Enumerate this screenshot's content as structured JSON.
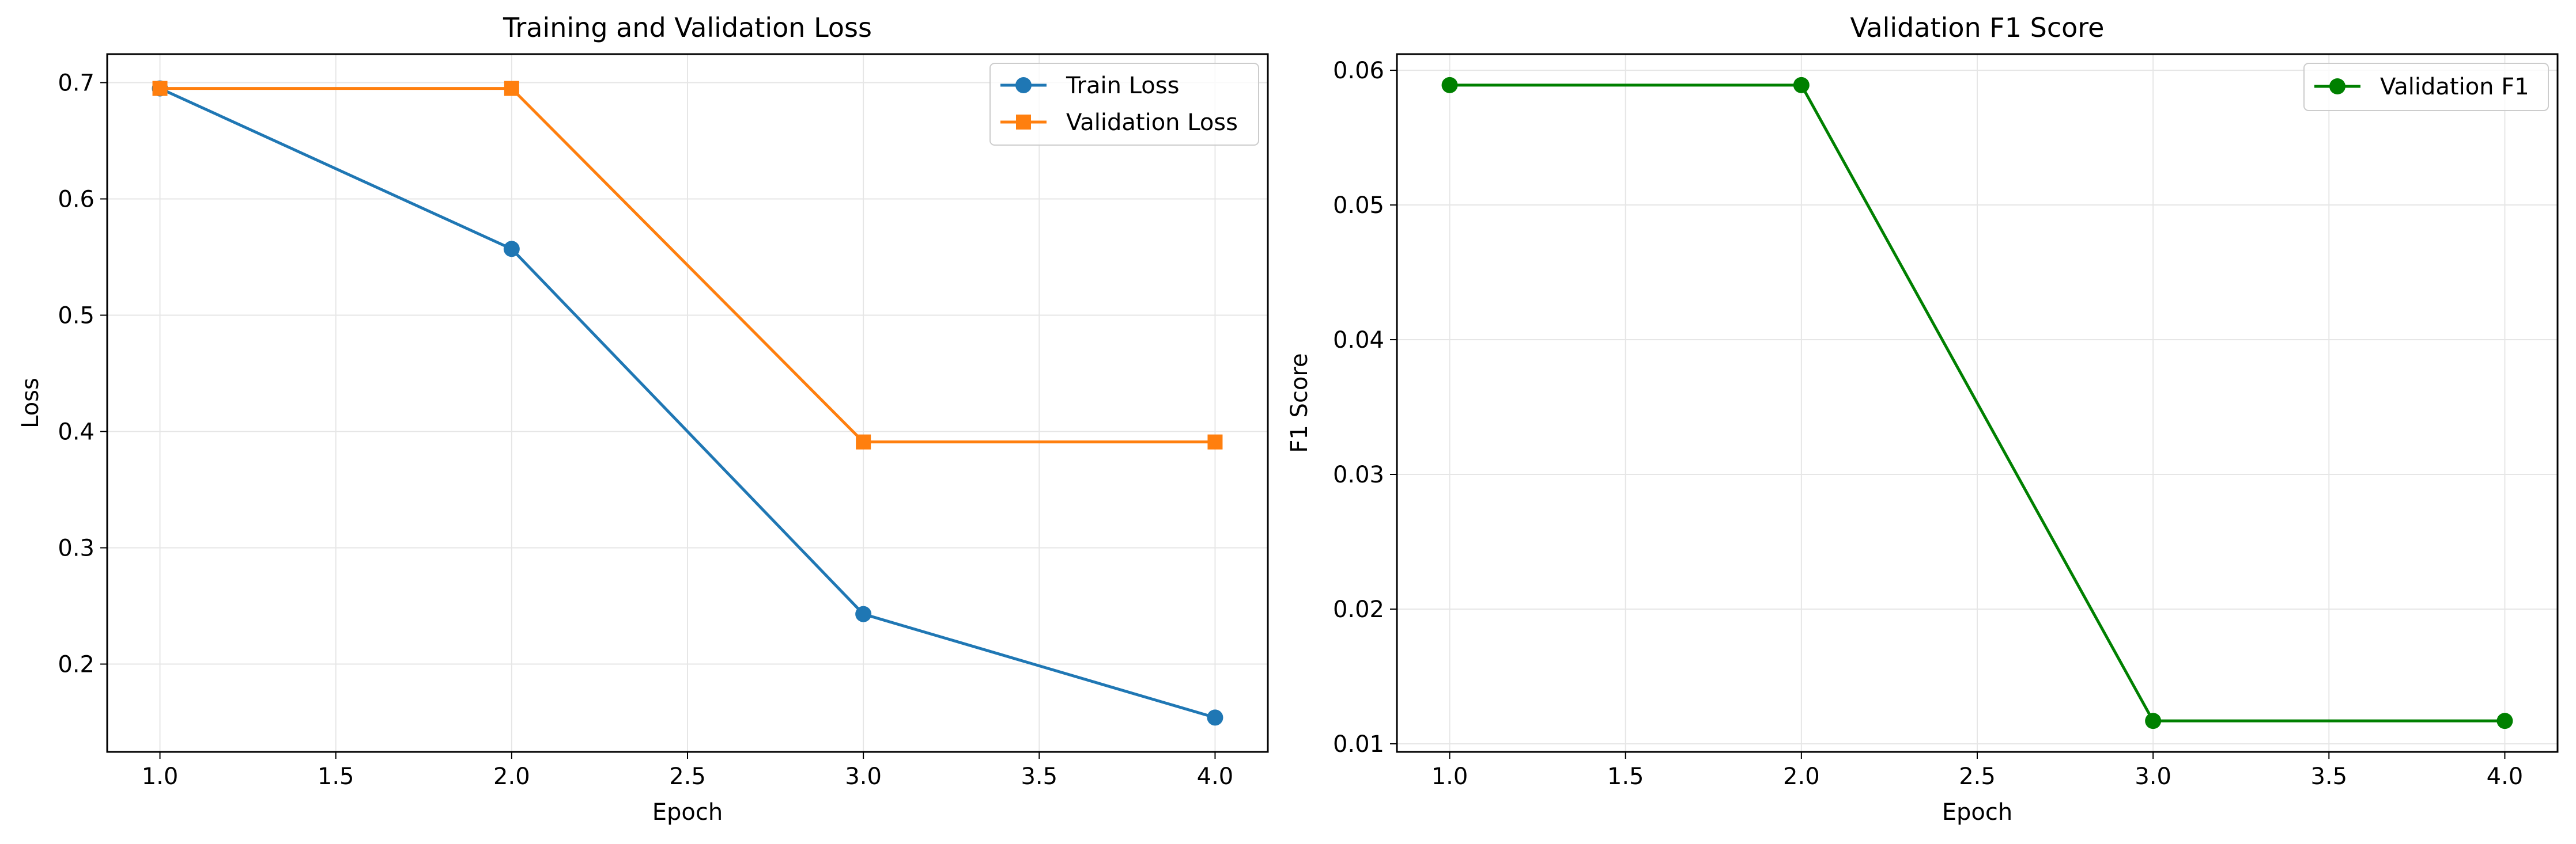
{
  "colors": {
    "train": "#1f77b4",
    "validation": "#ff7f0e",
    "f1": "#008000",
    "grid": "#e6e6e6",
    "axis": "#000000"
  },
  "chart_data": [
    {
      "type": "line",
      "title": "Training and Validation Loss",
      "xlabel": "Epoch",
      "ylabel": "Loss",
      "x": [
        1.0,
        2.0,
        3.0,
        4.0
      ],
      "xlim": [
        0.85,
        4.15
      ],
      "ylim": [
        0.1245,
        0.7245
      ],
      "xticks": [
        1.0,
        1.5,
        2.0,
        2.5,
        3.0,
        3.5,
        4.0
      ],
      "xtick_labels": [
        "1.0",
        "1.5",
        "2.0",
        "2.5",
        "3.0",
        "3.5",
        "4.0"
      ],
      "yticks": [
        0.2,
        0.3,
        0.4,
        0.5,
        0.6,
        0.7
      ],
      "ytick_labels": [
        "0.2",
        "0.3",
        "0.4",
        "0.5",
        "0.6",
        "0.7"
      ],
      "grid": true,
      "legend_position": "top-right",
      "series": [
        {
          "name": "Train Loss",
          "color": "#1f77b4",
          "marker": "circle",
          "values": [
            0.695,
            0.557,
            0.243,
            0.154
          ]
        },
        {
          "name": "Validation Loss",
          "color": "#ff7f0e",
          "marker": "square",
          "values": [
            0.695,
            0.695,
            0.391,
            0.391
          ]
        }
      ]
    },
    {
      "type": "line",
      "title": "Validation F1 Score",
      "xlabel": "Epoch",
      "ylabel": "F1 Score",
      "x": [
        1.0,
        2.0,
        3.0,
        4.0
      ],
      "xlim": [
        0.85,
        4.15
      ],
      "ylim": [
        0.0094,
        0.0612
      ],
      "xticks": [
        1.0,
        1.5,
        2.0,
        2.5,
        3.0,
        3.5,
        4.0
      ],
      "xtick_labels": [
        "1.0",
        "1.5",
        "2.0",
        "2.5",
        "3.0",
        "3.5",
        "4.0"
      ],
      "yticks": [
        0.01,
        0.02,
        0.03,
        0.04,
        0.05,
        0.06
      ],
      "ytick_labels": [
        "0.01",
        "0.02",
        "0.03",
        "0.04",
        "0.05",
        "0.06"
      ],
      "grid": true,
      "legend_position": "top-right",
      "series": [
        {
          "name": "Validation F1",
          "color": "#008000",
          "marker": "circle",
          "values": [
            0.0589,
            0.0589,
            0.0117,
            0.0117
          ]
        }
      ]
    }
  ]
}
